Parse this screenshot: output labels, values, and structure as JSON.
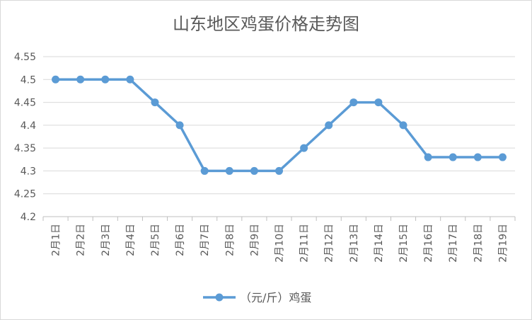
{
  "chart_data": {
    "type": "line",
    "title": "山东地区鸡蛋价格走势图",
    "categories": [
      "2月1日",
      "2月2日",
      "2月3日",
      "2月4日",
      "2月5日",
      "2月6日",
      "2月7日",
      "2月8日",
      "2月9日",
      "2月10日",
      "2月11日",
      "2月12日",
      "2月13日",
      "2月14日",
      "2月15日",
      "2月16日",
      "2月17日",
      "2月18日",
      "2月19日"
    ],
    "series": [
      {
        "name": "（元/斤）鸡蛋",
        "values": [
          4.5,
          4.5,
          4.5,
          4.5,
          4.45,
          4.4,
          4.3,
          4.3,
          4.3,
          4.3,
          4.35,
          4.4,
          4.45,
          4.45,
          4.4,
          4.33,
          4.33,
          4.33,
          4.33
        ],
        "color": "#5b9bd5"
      }
    ],
    "ylim": [
      4.2,
      4.55
    ],
    "yticks": [
      4.2,
      4.25,
      4.3,
      4.35,
      4.4,
      4.45,
      4.5,
      4.55
    ],
    "ytick_labels": [
      "4.2",
      "4.25",
      "4.3",
      "4.35",
      "4.4",
      "4.45",
      "4.5",
      "4.55"
    ],
    "grid": true,
    "legend_position": "bottom"
  }
}
